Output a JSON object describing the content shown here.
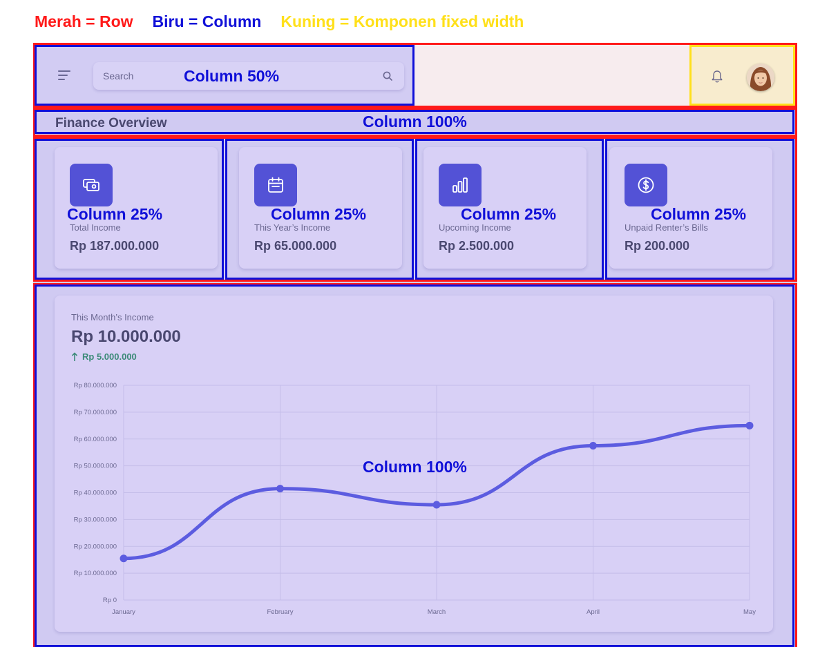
{
  "legend": {
    "row": {
      "text": "Merah = Row",
      "color": "#ff1a1a"
    },
    "column": {
      "text": "Biru = Column",
      "color": "#1010d8"
    },
    "fixed": {
      "text": "Kuning = Komponen fixed width",
      "color": "#ffe01a"
    }
  },
  "header": {
    "search_placeholder": "Search",
    "overlay": "Column 50%"
  },
  "section": {
    "title": "Finance Overview",
    "overlay": "Column 100%"
  },
  "cards": [
    {
      "icon": "wallet-icon",
      "label": "Total Income",
      "value": "Rp 187.000.000",
      "overlay": "Column 25%"
    },
    {
      "icon": "calendar-icon",
      "label": "This Year’s Income",
      "value": "Rp 65.000.000",
      "overlay": "Column 25%"
    },
    {
      "icon": "bar-chart-icon",
      "label": "Upcoming Income",
      "value": "Rp 2.500.000",
      "overlay": "Column 25%"
    },
    {
      "icon": "dollar-circle-icon",
      "label": "Unpaid Renter’s Bills",
      "value": "Rp 200.000",
      "overlay": "Column 25%"
    }
  ],
  "income_card": {
    "subtitle": "This Month’s Income",
    "value": "Rp 10.000.000",
    "delta": "Rp 5.000.000",
    "overlay": "Column 100%"
  },
  "colors": {
    "accent": "#5352d6",
    "line": "#5c5ce0",
    "text": "#4a4870",
    "positive": "#3c8a78"
  },
  "chart_data": {
    "type": "line",
    "categories": [
      "January",
      "February",
      "March",
      "April",
      "May"
    ],
    "series": [
      {
        "values": [
          15500000,
          41500000,
          35500000,
          57500000,
          65000000
        ]
      }
    ],
    "ylim": [
      0,
      80000000
    ],
    "y_ticks": [
      0,
      10000000,
      20000000,
      30000000,
      40000000,
      50000000,
      60000000,
      70000000,
      80000000
    ],
    "y_tick_labels": [
      "Rp 0",
      "Rp 10.000.000",
      "Rp 20.000.000",
      "Rp 30.000.000",
      "Rp 40.000.000",
      "Rp 50.000.000",
      "Rp 60.000.000",
      "Rp 70.000.000",
      "Rp 80.000.000"
    ],
    "grid": true,
    "smooth": true
  }
}
